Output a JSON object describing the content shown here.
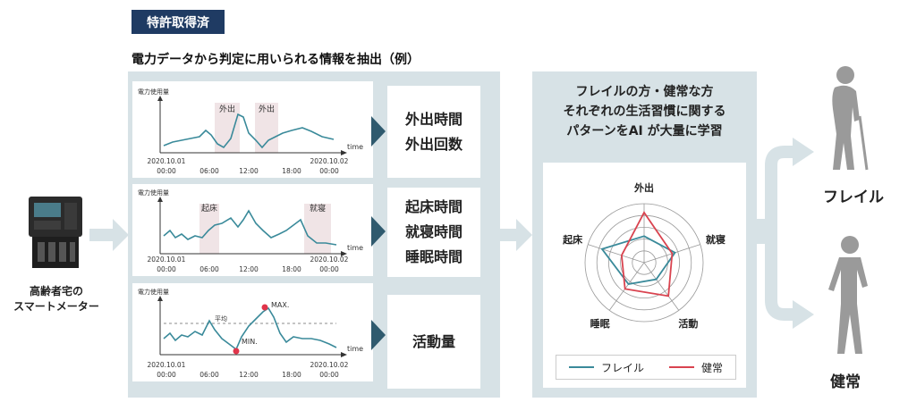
{
  "header": {
    "badge": "特許取得済",
    "subtitle": "電力データから判定に用いられる情報を抽出（例）"
  },
  "meter": {
    "caption_line1": "高齢者宅の",
    "caption_line2": "スマートメーター"
  },
  "graphs": {
    "ylabel": "電力使用量",
    "xunit": "time",
    "tick_labels": [
      "2020.10.01\n00:00",
      "06:00",
      "12:00",
      "18:00",
      "2020.10.02\n00:00"
    ],
    "graph1": {
      "annotations": [
        "外出",
        "外出"
      ]
    },
    "graph2": {
      "annotations": [
        "起床",
        "就寝"
      ]
    },
    "graph3": {
      "avg_label": "平均",
      "max_label": "MAX.",
      "min_label": "MIN."
    }
  },
  "outputs": {
    "box1": [
      "外出時間",
      "外出回数"
    ],
    "box2": [
      "起床時間",
      "就寝時間",
      "睡眠時間"
    ],
    "box3": [
      "活動量"
    ]
  },
  "ai": {
    "line1": "フレイルの方・健常な方",
    "line2": "それぞれの生活習慣に関する",
    "line3": "パターンをAI が大量に学習"
  },
  "chart_data": {
    "type": "radar",
    "axes": [
      "外出",
      "就寝",
      "活動",
      "睡眠",
      "起床"
    ],
    "series": [
      {
        "name": "フレイル",
        "values": [
          0.45,
          0.55,
          0.35,
          0.45,
          0.75
        ],
        "color": "#3a8a9a"
      },
      {
        "name": "健常",
        "values": [
          0.85,
          0.5,
          0.7,
          0.55,
          0.4
        ],
        "color": "#d9434f"
      }
    ],
    "rings": 5,
    "legend_position": "bottom"
  },
  "people": {
    "frail_label": "フレイル",
    "healthy_label": "健常"
  },
  "colors": {
    "accent_navy": "#1f3b63",
    "panel_bg": "#d7e2e6",
    "line_teal": "#3a8a9a",
    "arrow": "#d7e2e6",
    "chevron": "#2f5a6e"
  }
}
